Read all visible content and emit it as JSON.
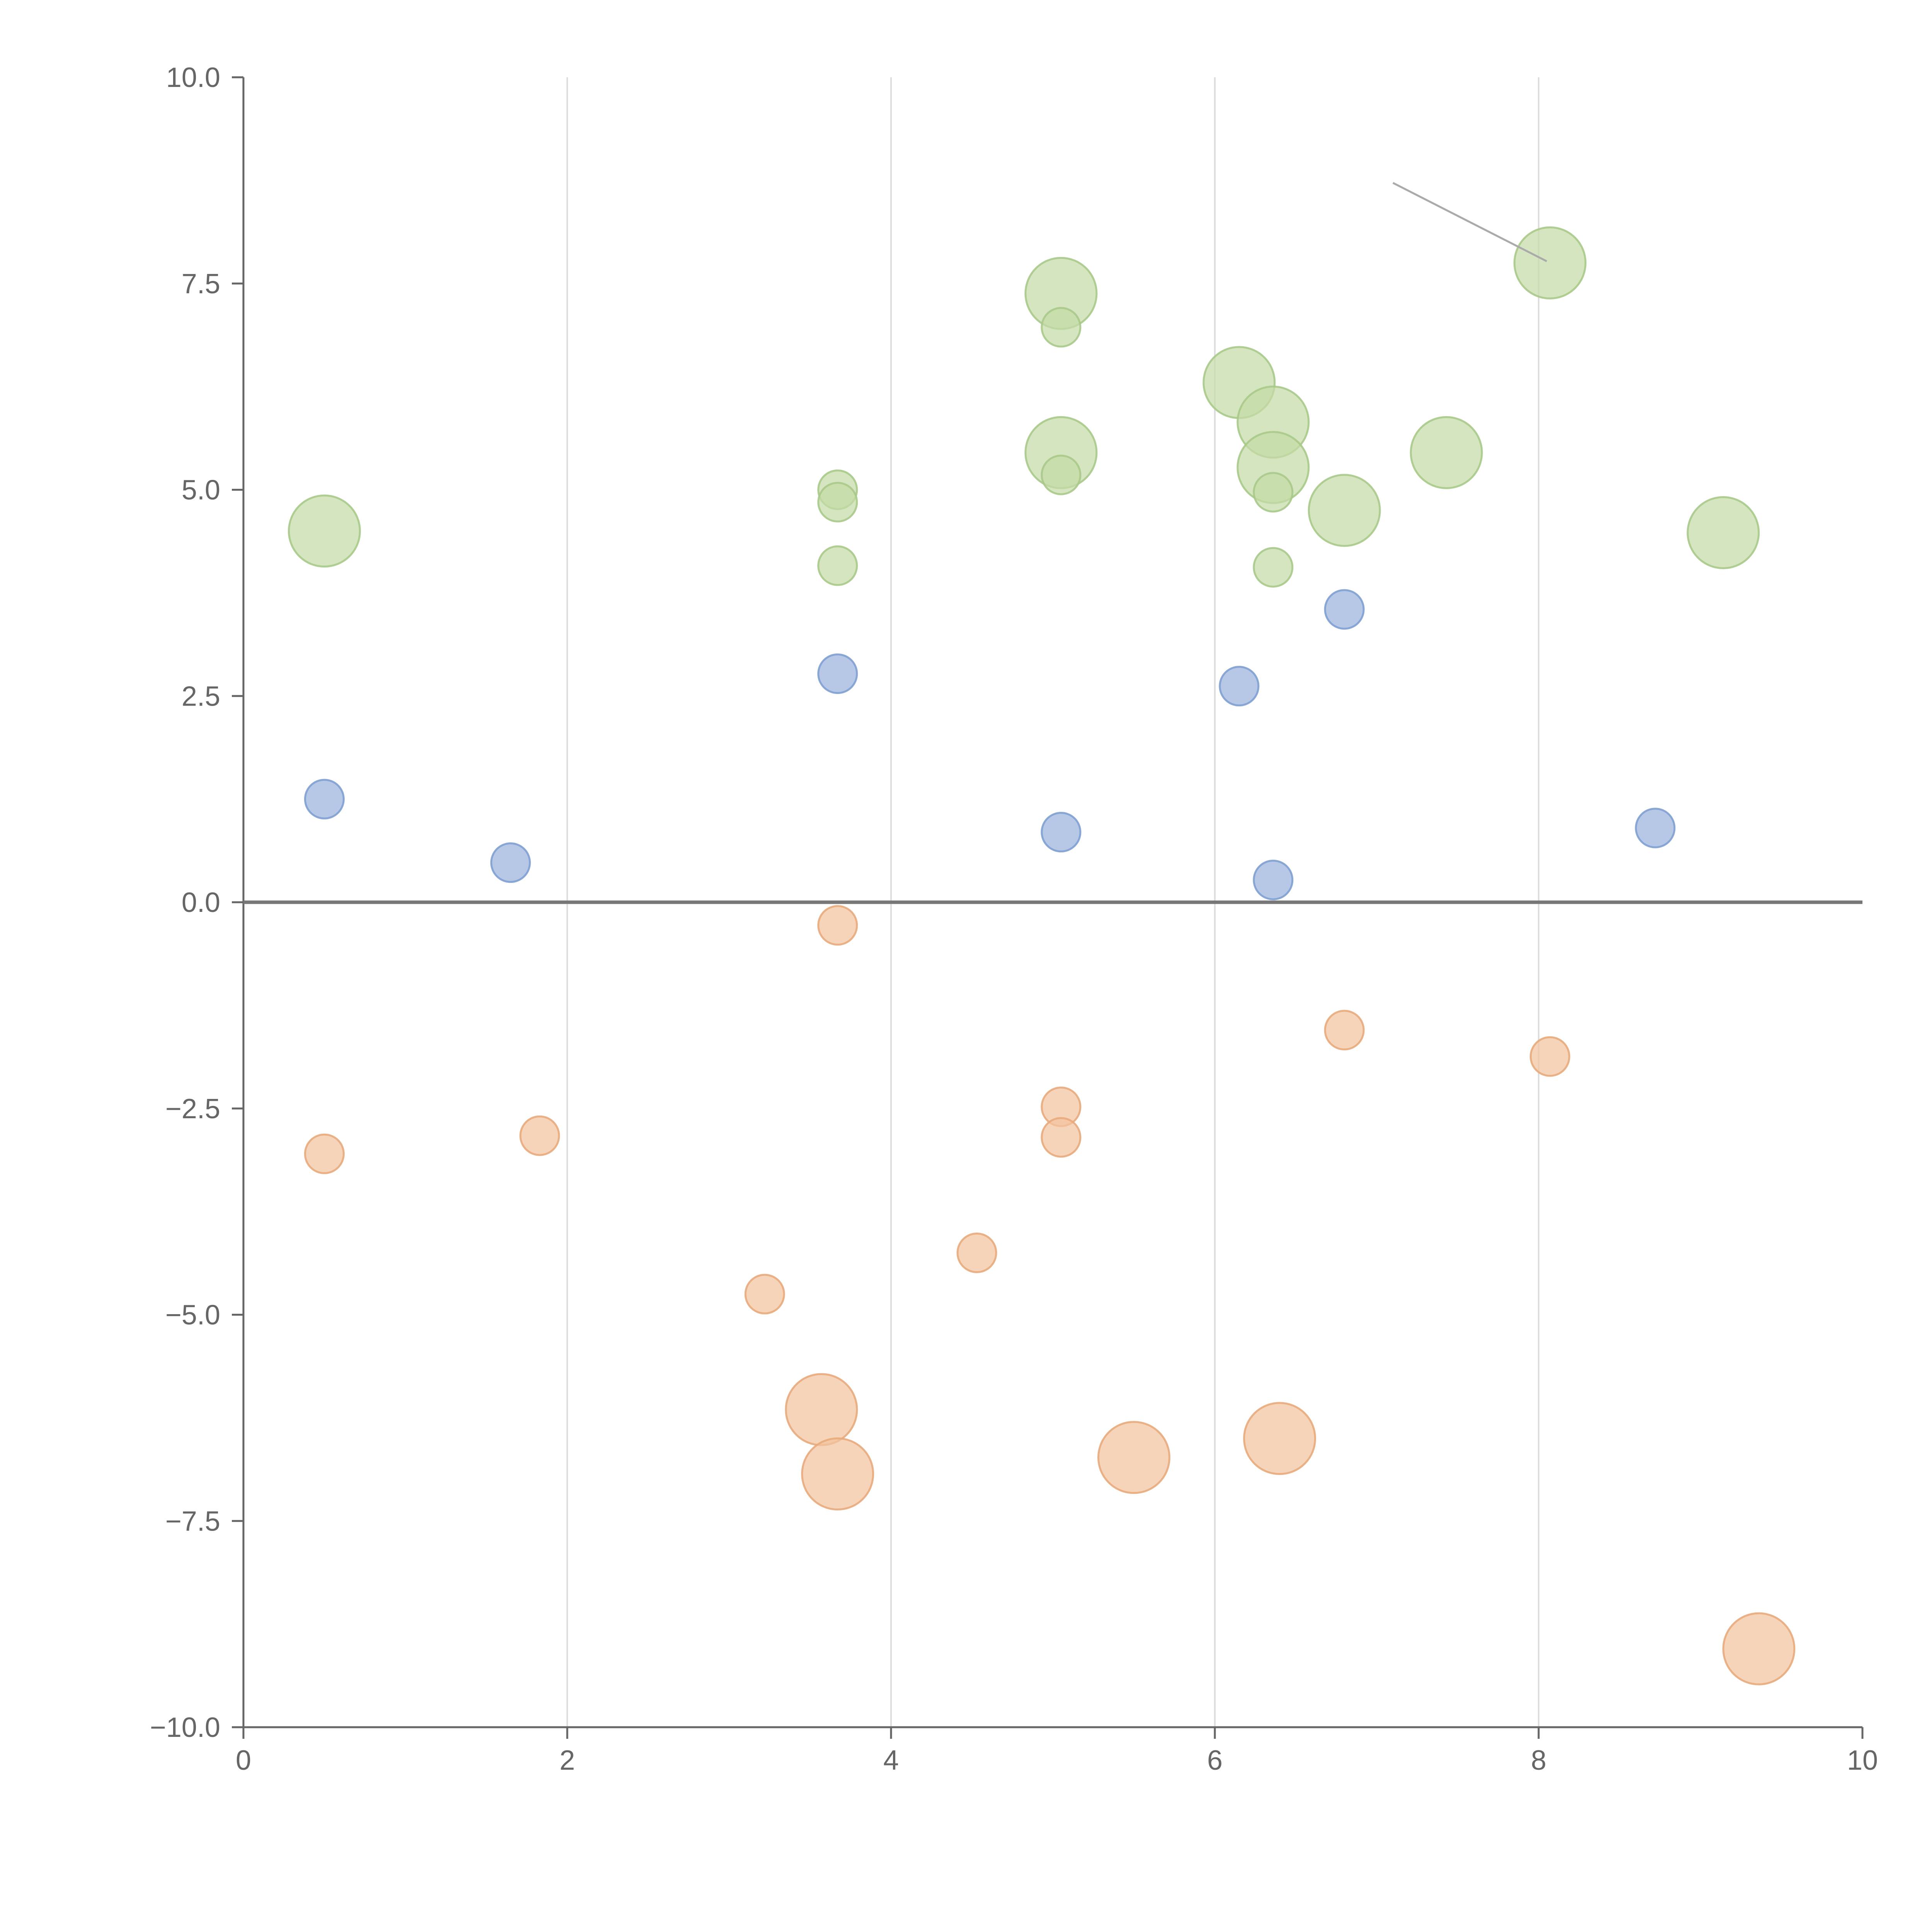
{
  "chart_data": {
    "type": "scatter",
    "title": "",
    "xlabel": "",
    "ylabel": "",
    "xlim": [
      0,
      10
    ],
    "ylim": [
      -10,
      10
    ],
    "x_ticks": [
      "0",
      "2",
      "4",
      "6",
      "8",
      "10"
    ],
    "x_tick_values": [
      0,
      2,
      4,
      6,
      8,
      10
    ],
    "y_ticks": [
      "10.0",
      "7.5",
      "5.0",
      "2.5",
      "0.0",
      "−2.5",
      "−5.0",
      "−7.5",
      "−10.0"
    ],
    "y_tick_values": [
      10,
      7.5,
      5,
      2.5,
      0,
      -2.5,
      -5,
      -7.5,
      -10
    ],
    "grid": {
      "vertical": true,
      "horizontal": false
    },
    "legend": "none",
    "series": [
      {
        "color": "#9ab3dc",
        "stroke": "#7f9fd0",
        "points": [
          {
            "x": 0.5,
            "y": 1.25,
            "size": 1
          },
          {
            "x": 1.65,
            "y": 0.48,
            "size": 1
          },
          {
            "x": 3.67,
            "y": 2.77,
            "size": 1
          },
          {
            "x": 5.05,
            "y": 0.85,
            "size": 1
          },
          {
            "x": 6.15,
            "y": 2.62,
            "size": 1
          },
          {
            "x": 6.36,
            "y": 0.27,
            "size": 1
          },
          {
            "x": 6.8,
            "y": 3.55,
            "size": 1
          },
          {
            "x": 8.72,
            "y": 0.9,
            "size": 1
          }
        ]
      },
      {
        "color": "#c5dba6",
        "stroke": "#a9c98a",
        "points": [
          {
            "x": 0.5,
            "y": 4.5,
            "size": 2
          },
          {
            "x": 3.67,
            "y": 5.0,
            "size": 1
          },
          {
            "x": 3.67,
            "y": 4.85,
            "size": 1
          },
          {
            "x": 3.67,
            "y": 4.08,
            "size": 1
          },
          {
            "x": 5.05,
            "y": 7.38,
            "size": 2
          },
          {
            "x": 5.05,
            "y": 6.97,
            "size": 1
          },
          {
            "x": 5.05,
            "y": 5.45,
            "size": 2
          },
          {
            "x": 5.05,
            "y": 5.18,
            "size": 1
          },
          {
            "x": 6.15,
            "y": 6.3,
            "size": 2
          },
          {
            "x": 6.36,
            "y": 5.82,
            "size": 2
          },
          {
            "x": 6.36,
            "y": 5.27,
            "size": 2
          },
          {
            "x": 6.36,
            "y": 4.97,
            "size": 1
          },
          {
            "x": 6.36,
            "y": 4.06,
            "size": 1
          },
          {
            "x": 6.8,
            "y": 4.75,
            "size": 2
          },
          {
            "x": 7.43,
            "y": 5.45,
            "size": 2
          },
          {
            "x": 8.07,
            "y": 7.75,
            "size": 2
          },
          {
            "x": 9.14,
            "y": 4.48,
            "size": 2
          }
        ]
      },
      {
        "color": "#f2c4a0",
        "stroke": "#e8aa7c",
        "points": [
          {
            "x": 0.5,
            "y": -3.05,
            "size": 1
          },
          {
            "x": 1.83,
            "y": -2.83,
            "size": 1
          },
          {
            "x": 3.22,
            "y": -4.75,
            "size": 1
          },
          {
            "x": 3.57,
            "y": -6.15,
            "size": 2
          },
          {
            "x": 3.67,
            "y": -0.28,
            "size": 1
          },
          {
            "x": 3.67,
            "y": -6.93,
            "size": 2
          },
          {
            "x": 4.53,
            "y": -4.25,
            "size": 1
          },
          {
            "x": 5.05,
            "y": -2.48,
            "size": 1
          },
          {
            "x": 5.05,
            "y": -2.85,
            "size": 1
          },
          {
            "x": 5.5,
            "y": -6.73,
            "size": 2
          },
          {
            "x": 6.4,
            "y": -6.5,
            "size": 2
          },
          {
            "x": 6.8,
            "y": -1.55,
            "size": 1
          },
          {
            "x": 8.07,
            "y": -1.87,
            "size": 1
          },
          {
            "x": 9.36,
            "y": -9.05,
            "size": 2
          }
        ]
      }
    ],
    "annotations": [
      {
        "from": [
          7.1,
          8.72
        ],
        "to": [
          8.05,
          7.77
        ]
      }
    ]
  }
}
